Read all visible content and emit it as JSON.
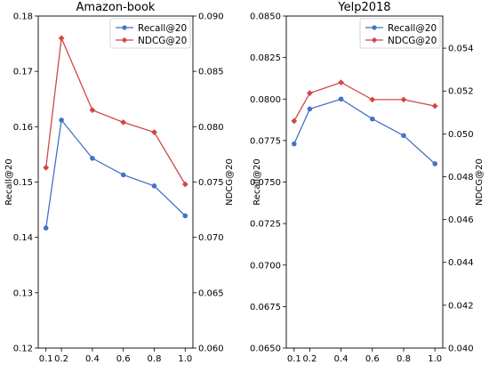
{
  "chart_data": [
    {
      "type": "line",
      "title": "Amazon-book",
      "x": [
        0.1,
        0.2,
        0.4,
        0.6,
        0.8,
        1.0
      ],
      "xticks": [
        "0.1",
        "0.2",
        "0.4",
        "0.6",
        "0.8",
        "1.0"
      ],
      "left_axis": {
        "label": "Recall@20",
        "ylim": [
          0.12,
          0.18
        ],
        "ticks": [
          "0.12",
          "0.13",
          "0.14",
          "0.15",
          "0.16",
          "0.17",
          "0.18"
        ]
      },
      "right_axis": {
        "label": "NDCG@20",
        "ylim": [
          0.06,
          0.09
        ],
        "ticks": [
          "0.060",
          "0.065",
          "0.070",
          "0.075",
          "0.080",
          "0.085",
          "0.090"
        ]
      },
      "series": [
        {
          "name": "Recall@20",
          "axis": "left",
          "color": "#4472c4",
          "marker": "circle",
          "values": [
            0.1417,
            0.1612,
            0.1543,
            0.1513,
            0.1493,
            0.1439
          ]
        },
        {
          "name": "NDCG@20",
          "axis": "right",
          "color": "#d04848",
          "marker": "diamond",
          "values": [
            0.0763,
            0.088,
            0.0815,
            0.0804,
            0.0795,
            0.0748
          ]
        }
      ],
      "legend": "upper-right"
    },
    {
      "type": "line",
      "title": "Yelp2018",
      "x": [
        0.1,
        0.2,
        0.4,
        0.6,
        0.8,
        1.0
      ],
      "xticks": [
        "0.1",
        "0.2",
        "0.4",
        "0.6",
        "0.8",
        "1.0"
      ],
      "left_axis": {
        "label": "Recall@20",
        "ylim": [
          0.065,
          0.085
        ],
        "ticks": [
          "0.0650",
          "0.0675",
          "0.0700",
          "0.0725",
          "0.0750",
          "0.0775",
          "0.0800",
          "0.0825",
          "0.0850"
        ]
      },
      "right_axis": {
        "label": "NDCG@20",
        "ylim": [
          0.04,
          0.0555
        ],
        "ticks": [
          "0.040",
          "0.042",
          "0.044",
          "0.046",
          "0.048",
          "0.050",
          "0.052",
          "0.054"
        ]
      },
      "series": [
        {
          "name": "Recall@20",
          "axis": "left",
          "color": "#4472c4",
          "marker": "circle",
          "values": [
            0.0773,
            0.0794,
            0.08,
            0.0788,
            0.0778,
            0.0761
          ]
        },
        {
          "name": "NDCG@20",
          "axis": "right",
          "color": "#d04848",
          "marker": "diamond",
          "values": [
            0.0506,
            0.0519,
            0.0524,
            0.0516,
            0.0516,
            0.0513
          ]
        }
      ],
      "legend": "upper-right"
    }
  ]
}
